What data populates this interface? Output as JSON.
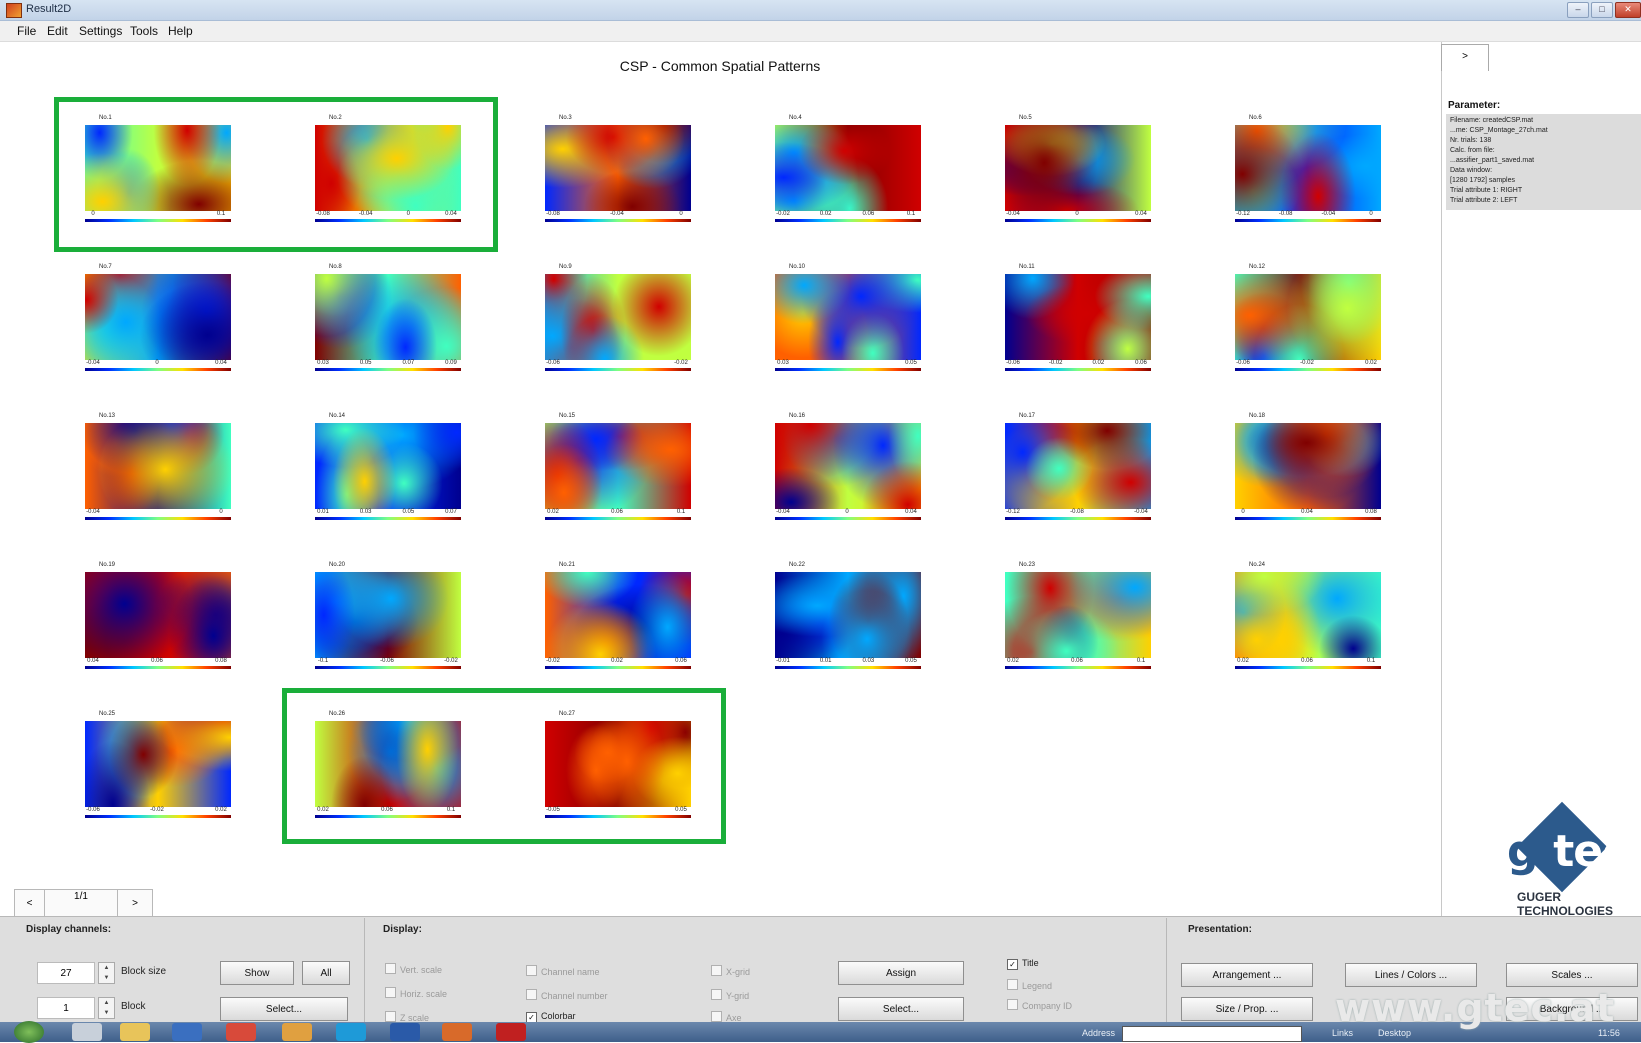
{
  "window": {
    "title": "Result2D"
  },
  "menu": [
    "File",
    "Edit",
    "Settings",
    "Tools",
    "Help"
  ],
  "main_title": "CSP - Common Spatial Patterns",
  "plots": [
    {
      "label": "No.1",
      "ticks": [
        "0",
        "0.1"
      ]
    },
    {
      "label": "No.2",
      "ticks": [
        "-0.08",
        "-0.04",
        "0",
        "0.04"
      ]
    },
    {
      "label": "No.3",
      "ticks": [
        "-0.08",
        "-0.04",
        "0"
      ]
    },
    {
      "label": "No.4",
      "ticks": [
        "-0.02",
        "0.02",
        "0.06",
        "0.1"
      ]
    },
    {
      "label": "No.5",
      "ticks": [
        "-0.04",
        "0",
        "0.04"
      ]
    },
    {
      "label": "No.6",
      "ticks": [
        "-0.12",
        "-0.08",
        "-0.04",
        "0"
      ]
    },
    {
      "label": "No.7",
      "ticks": [
        "-0.04",
        "0",
        "0.04"
      ]
    },
    {
      "label": "No.8",
      "ticks": [
        "0.03",
        "0.05",
        "0.07",
        "0.09"
      ]
    },
    {
      "label": "No.9",
      "ticks": [
        "-0.06",
        "-0.02"
      ]
    },
    {
      "label": "No.10",
      "ticks": [
        "0.03",
        "0.05"
      ]
    },
    {
      "label": "No.11",
      "ticks": [
        "-0.06",
        "-0.02",
        "0.02",
        "0.06"
      ]
    },
    {
      "label": "No.12",
      "ticks": [
        "-0.06",
        "-0.02",
        "0.02"
      ]
    },
    {
      "label": "No.13",
      "ticks": [
        "-0.04",
        "0"
      ]
    },
    {
      "label": "No.14",
      "ticks": [
        "0.01",
        "0.03",
        "0.05",
        "0.07"
      ]
    },
    {
      "label": "No.15",
      "ticks": [
        "0.02",
        "0.06",
        "0.1"
      ]
    },
    {
      "label": "No.16",
      "ticks": [
        "-0.04",
        "0",
        "0.04"
      ]
    },
    {
      "label": "No.17",
      "ticks": [
        "-0.12",
        "-0.08",
        "-0.04"
      ]
    },
    {
      "label": "No.18",
      "ticks": [
        "0",
        "0.04",
        "0.08"
      ]
    },
    {
      "label": "No.19",
      "ticks": [
        "0.04",
        "0.06",
        "0.08"
      ]
    },
    {
      "label": "No.20",
      "ticks": [
        "-0.1",
        "-0.06",
        "-0.02"
      ]
    },
    {
      "label": "No.21",
      "ticks": [
        "-0.02",
        "0.02",
        "0.06"
      ]
    },
    {
      "label": "No.22",
      "ticks": [
        "-0.01",
        "0.01",
        "0.03",
        "0.05"
      ]
    },
    {
      "label": "No.23",
      "ticks": [
        "0.02",
        "0.06",
        "0.1"
      ]
    },
    {
      "label": "No.24",
      "ticks": [
        "0.02",
        "0.06",
        "0.1"
      ]
    },
    {
      "label": "No.25",
      "ticks": [
        "-0.06",
        "-0.02",
        "0.02"
      ]
    },
    {
      "label": "No.26",
      "ticks": [
        "0.02",
        "0.06",
        "0.1"
      ]
    },
    {
      "label": "No.27",
      "ticks": [
        "-0.05",
        "0.05"
      ]
    }
  ],
  "pager": {
    "prev": "<",
    "page": "1/1",
    "next": ">"
  },
  "right_panel": {
    "tab": ">",
    "param_title": "Parameter:",
    "lines": [
      "Filename: createdCSP.mat",
      "...me: CSP_Montage_27ch.mat",
      "Nr. trials: 138",
      "Calc. from file:",
      "...assifier_part1_saved.mat",
      "Data window:",
      "[1280 1792] samples",
      "Trial attribute 1: RIGHT",
      "Trial attribute 2: LEFT"
    ]
  },
  "logo": {
    "text_g": "g",
    "text_tec": "tec",
    "line1": "GUGER",
    "line2": "TECHNOLOGIES"
  },
  "controls": {
    "display_channels": {
      "label": "Display channels:",
      "block_size_value": "27",
      "block_size_label": "Block size",
      "block_value": "1",
      "block_label": "Block",
      "show": "Show",
      "all": "All",
      "select": "Select..."
    },
    "display": {
      "label": "Display:",
      "checks": [
        {
          "text": "Vert. scale",
          "on": false
        },
        {
          "text": "Horiz. scale",
          "on": false
        },
        {
          "text": "Z scale",
          "on": false
        },
        {
          "text": "Channel name",
          "on": false
        },
        {
          "text": "Channel number",
          "on": false
        },
        {
          "text": "Colorbar",
          "on": true
        },
        {
          "text": "X-grid",
          "on": false
        },
        {
          "text": "Y-grid",
          "on": false
        },
        {
          "text": "Axe",
          "on": false
        },
        {
          "text": "Title",
          "on": true
        },
        {
          "text": "Legend",
          "on": false
        },
        {
          "text": "Company ID",
          "on": false
        }
      ],
      "assign": "Assign",
      "select": "Select..."
    },
    "presentation": {
      "label": "Presentation:",
      "arrangement": "Arrangement ...",
      "lines_colors": "Lines / Colors ...",
      "scales": "Scales ...",
      "size_prop": "Size / Prop. ...",
      "background": "Background ..."
    }
  },
  "taskbar": {
    "address_label": "Address",
    "links": "Links",
    "desktop": "Desktop",
    "clock": "11:56"
  },
  "watermark": "www.gtec.at",
  "colors": {
    "highlight": "#1aae3a",
    "logo": "#2c5a8c"
  }
}
